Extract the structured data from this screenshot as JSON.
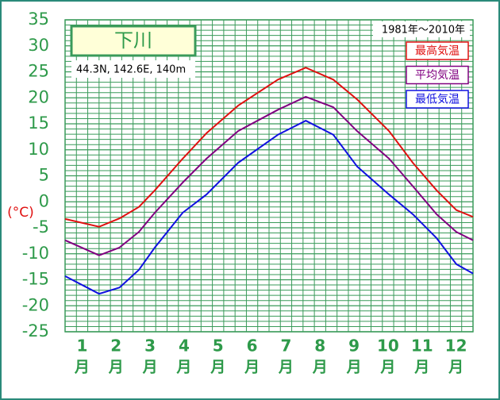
{
  "chart_data": {
    "type": "line",
    "title": "下川",
    "subtitle": "44.3N, 142.6E, 140m",
    "period": "1981年～2010年",
    "y_label": "(°C)",
    "categories": [
      "1",
      "2",
      "3",
      "4",
      "5",
      "6",
      "7",
      "8",
      "9",
      "10",
      "11",
      "12"
    ],
    "category_unit": "月",
    "x": [
      0,
      1.0,
      1.6,
      2.17,
      2.64,
      3.46,
      4.16,
      5.09,
      6.26,
      7.08,
      7.89,
      8.59,
      9.53,
      10.23,
      10.93,
      11.51,
      12
    ],
    "xlim": [
      0,
      12
    ],
    "ylim": [
      -25,
      35
    ],
    "yticks": [
      -25,
      -20,
      -15,
      -10,
      -5,
      0,
      5,
      10,
      15,
      20,
      25,
      30,
      35
    ],
    "grid": true,
    "series": [
      {
        "name": "最高気温",
        "color": "#e01010",
        "values": [
          -3.3,
          -4.8,
          -3.2,
          -1,
          2.2,
          8.3,
          13.2,
          18.5,
          23.5,
          25.8,
          23.5,
          19.7,
          13.6,
          7.5,
          2.2,
          -1.6,
          -2.9
        ]
      },
      {
        "name": "平均気温",
        "color": "#800080",
        "values": [
          -7.4,
          -10.3,
          -8.8,
          -5.8,
          -2.1,
          3.7,
          8.3,
          13.6,
          17.7,
          20.2,
          18.2,
          13.6,
          8.3,
          3.0,
          -2.4,
          -5.8,
          -7.4
        ]
      },
      {
        "name": "最低気温",
        "color": "#1010e0",
        "values": [
          -14.3,
          -17.7,
          -16.5,
          -13.1,
          -8.8,
          -2.1,
          1.4,
          7.5,
          12.9,
          15.6,
          12.9,
          6.8,
          1.4,
          -2.4,
          -7.0,
          -12,
          -13.8
        ]
      }
    ]
  }
}
